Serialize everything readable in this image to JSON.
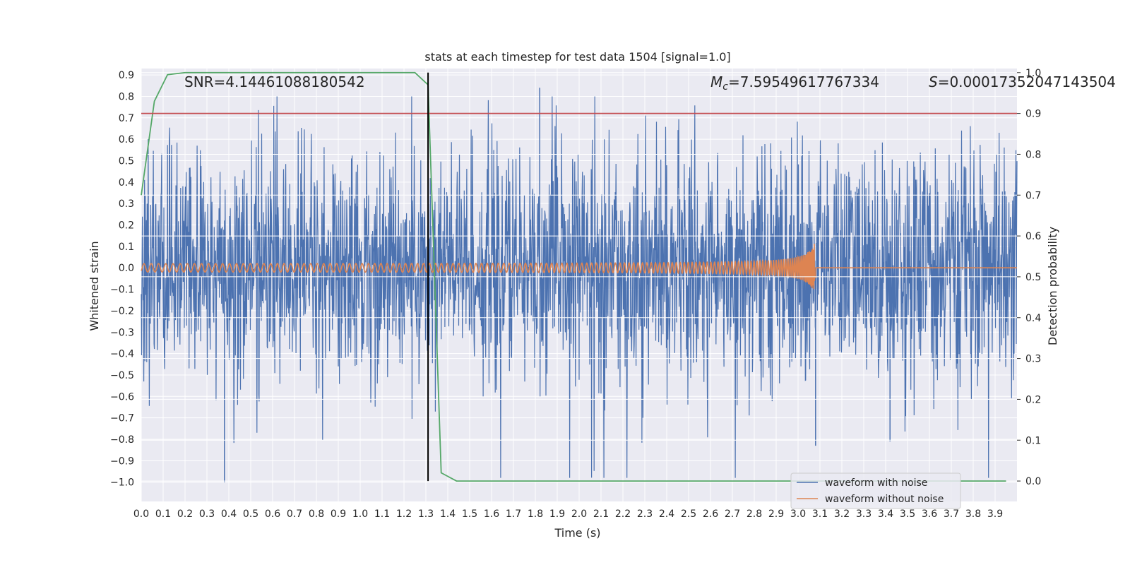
{
  "chart_data": {
    "type": "line",
    "title": "stats at each timestep for test data 1504 [signal=1.0]",
    "xlabel": "Time (s)",
    "ylabel": "Whitened strain",
    "ylabel_right": "Detection probability",
    "xlim": [
      0.0,
      4.0
    ],
    "ylim": [
      -1.09,
      0.93
    ],
    "ylim_right": [
      -0.05,
      1.01
    ],
    "x_ticks": [
      "0.0",
      "0.1",
      "0.2",
      "0.3",
      "0.4",
      "0.5",
      "0.6",
      "0.7",
      "0.8",
      "0.9",
      "1.0",
      "1.1",
      "1.2",
      "1.3",
      "1.4",
      "1.5",
      "1.6",
      "1.7",
      "1.8",
      "1.9",
      "2.0",
      "2.1",
      "2.2",
      "2.3",
      "2.4",
      "2.5",
      "2.6",
      "2.7",
      "2.8",
      "2.9",
      "3.0",
      "3.1",
      "3.2",
      "3.3",
      "3.4",
      "3.5",
      "3.6",
      "3.7",
      "3.8",
      "3.9"
    ],
    "y_ticks": [
      "0.9",
      "0.8",
      "0.7",
      "0.6",
      "0.5",
      "0.4",
      "0.3",
      "0.2",
      "0.1",
      "0.0",
      "−0.1",
      "−0.2",
      "−0.3",
      "−0.4",
      "−0.5",
      "−0.6",
      "−0.7",
      "−0.8",
      "−0.9",
      "−1.0"
    ],
    "y_tick_values": [
      0.9,
      0.8,
      0.7,
      0.6,
      0.5,
      0.4,
      0.3,
      0.2,
      0.1,
      0.0,
      -0.1,
      -0.2,
      -0.3,
      -0.4,
      -0.5,
      -0.6,
      -0.7,
      -0.8,
      -0.9,
      -1.0
    ],
    "y_right_ticks": [
      "1.0",
      "0.9",
      "0.8",
      "0.7",
      "0.6",
      "0.5",
      "0.4",
      "0.3",
      "0.2",
      "0.1",
      "0.0"
    ],
    "y_right_tick_values": [
      1.0,
      0.9,
      0.8,
      0.7,
      0.6,
      0.5,
      0.4,
      0.3,
      0.2,
      0.1,
      0.0
    ],
    "series": [
      {
        "name": "waveform with noise",
        "color": "#4c72b0",
        "axis": "left",
        "description": "noisy whitened strain, roughly between -1.0 and 0.85",
        "notable_peaks": [
          {
            "x": 1.82,
            "y": 0.84
          },
          {
            "x": 0.38,
            "y": -1.0
          },
          {
            "x": 3.08,
            "y": -0.83
          },
          {
            "x": 3.42,
            "y": -0.81
          }
        ]
      },
      {
        "name": "waveform without noise",
        "color": "#dd8452",
        "axis": "left",
        "description": "chirp signal growing in frequency and amplitude until merger near 3.08 s, then zero",
        "start_amplitude": 0.018,
        "peak_amplitude": 0.13,
        "merger_time": 3.08
      },
      {
        "name": "detection probability",
        "color": "#55a868",
        "axis": "right",
        "x": [
          0.0,
          0.06,
          0.12,
          0.2,
          1.25,
          1.31,
          1.37,
          1.44,
          3.95
        ],
        "y": [
          0.7,
          0.93,
          0.995,
          1.0,
          1.0,
          0.97,
          0.02,
          0.0,
          0.0
        ]
      }
    ],
    "threshold": {
      "axis": "right",
      "value": 0.9,
      "color": "#c44e52"
    },
    "vline": {
      "x": 1.31,
      "color": "#000000"
    },
    "annotations": {
      "snr": "SNR=4.14461088180542",
      "mc": "=7.59549617767334",
      "mc_symbol": "M",
      "mc_sub": "c",
      "s": "=0.00017352047143504",
      "s_symbol": "S"
    },
    "legend": {
      "location": "lower-right",
      "entries": [
        {
          "label": "waveform with noise",
          "color": "#4c72b0"
        },
        {
          "label": "waveform without noise",
          "color": "#dd8452"
        }
      ]
    },
    "grid": true
  }
}
